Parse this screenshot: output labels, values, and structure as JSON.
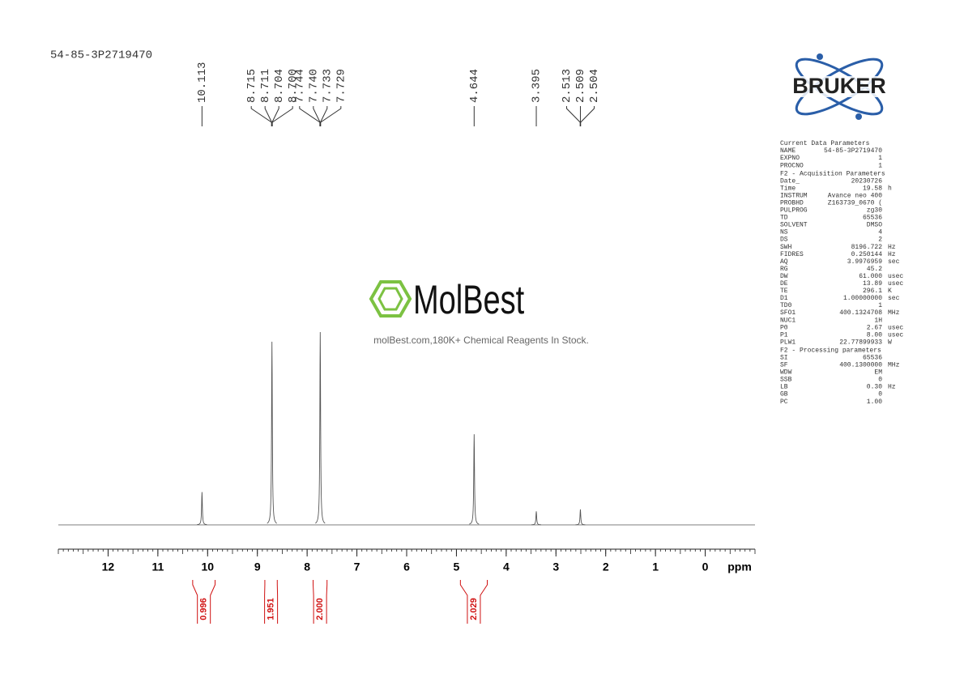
{
  "chart_data": {
    "type": "nmr",
    "title": "54-85-3P2719470",
    "x_label": "ppm",
    "xlim": [
      13,
      -1
    ],
    "xticks": [
      12,
      11,
      10,
      9,
      8,
      7,
      6,
      5,
      4,
      3,
      2,
      1,
      0
    ],
    "xminor": 0.1,
    "ylim": [
      0,
      100
    ],
    "color": "#555555",
    "peaks": {
      "x": [
        10.113,
        8.707,
        7.737,
        4.644,
        3.395,
        2.509
      ],
      "values": [
        17,
        95,
        100,
        47,
        7,
        8
      ]
    },
    "peak_labels": [
      {
        "value": 10.113,
        "label": "10.113"
      },
      {
        "value": 8.715,
        "label": "8.715"
      },
      {
        "value": 8.711,
        "label": "8.711"
      },
      {
        "value": 8.704,
        "label": "8.704"
      },
      {
        "value": 8.7,
        "label": "8.700"
      },
      {
        "value": 7.744,
        "label": "7.744"
      },
      {
        "value": 7.74,
        "label": "7.740"
      },
      {
        "value": 7.733,
        "label": "7.733"
      },
      {
        "value": 7.729,
        "label": "7.729"
      },
      {
        "value": 4.644,
        "label": "4.644"
      },
      {
        "value": 3.395,
        "label": "3.395"
      },
      {
        "value": 2.513,
        "label": "2.513"
      },
      {
        "value": 2.509,
        "label": "2.509"
      },
      {
        "value": 2.504,
        "label": "2.504"
      }
    ],
    "integrals": {
      "ranges": [
        [
          10.3,
          9.85
        ],
        [
          8.85,
          8.6
        ],
        [
          7.88,
          7.6
        ],
        [
          4.92,
          4.38
        ]
      ],
      "values": [
        0.996,
        1.951,
        2,
        2.029
      ],
      "value_labels": [
        "0.996",
        "1.951",
        "2.000",
        "2.029"
      ],
      "color": "#d01010"
    }
  },
  "logo": "BRUKER",
  "watermark": {
    "name": "MolBest",
    "tagline": "molBest.com,180K+ Chemical Reagents In Stock."
  },
  "parameters": [
    {
      "title": "Current Data Parameters",
      "rows": [
        [
          "NAME",
          "54-85-3P2719470"
        ],
        [
          "EXPNO",
          "1"
        ],
        [
          "PROCNO",
          "1"
        ]
      ]
    },
    {
      "title": "F2 - Acquisition Parameters",
      "rows": [
        [
          "Date_",
          "20230726"
        ],
        [
          "Time",
          "19.58",
          "h"
        ],
        [
          "INSTRUM",
          "Avance neo 400"
        ],
        [
          "PROBHD",
          "Z163739_0670 ("
        ],
        [
          "PULPROG",
          "zg30"
        ],
        [
          "TD",
          "65536"
        ],
        [
          "SOLVENT",
          "DMSO"
        ],
        [
          "NS",
          "4"
        ],
        [
          "DS",
          "2"
        ],
        [
          "SWH",
          "8196.722",
          "Hz"
        ],
        [
          "FIDRES",
          "0.250144",
          "Hz"
        ],
        [
          "AQ",
          "3.9976959",
          "sec"
        ],
        [
          "RG",
          "45.2"
        ],
        [
          "DW",
          "61.000",
          "usec"
        ],
        [
          "DE",
          "13.89",
          "usec"
        ],
        [
          "TE",
          "296.1",
          "K"
        ],
        [
          "D1",
          "1.00000000",
          "sec"
        ],
        [
          "TD0",
          "1"
        ],
        [
          "SFO1",
          "400.1324708",
          "MHz"
        ],
        [
          "NUC1",
          "1H"
        ],
        [
          "P0",
          "2.67",
          "usec"
        ],
        [
          "P1",
          "8.00",
          "usec"
        ],
        [
          "PLW1",
          "22.77899933",
          "W"
        ]
      ]
    },
    {
      "title": "F2 - Processing parameters",
      "rows": [
        [
          "SI",
          "65536"
        ],
        [
          "SF",
          "400.1300000",
          "MHz"
        ],
        [
          "WDW",
          "EM"
        ],
        [
          "SSB",
          "0"
        ],
        [
          "LB",
          "0.30",
          "Hz"
        ],
        [
          "GB",
          "0"
        ],
        [
          "PC",
          "1.00"
        ]
      ]
    }
  ]
}
